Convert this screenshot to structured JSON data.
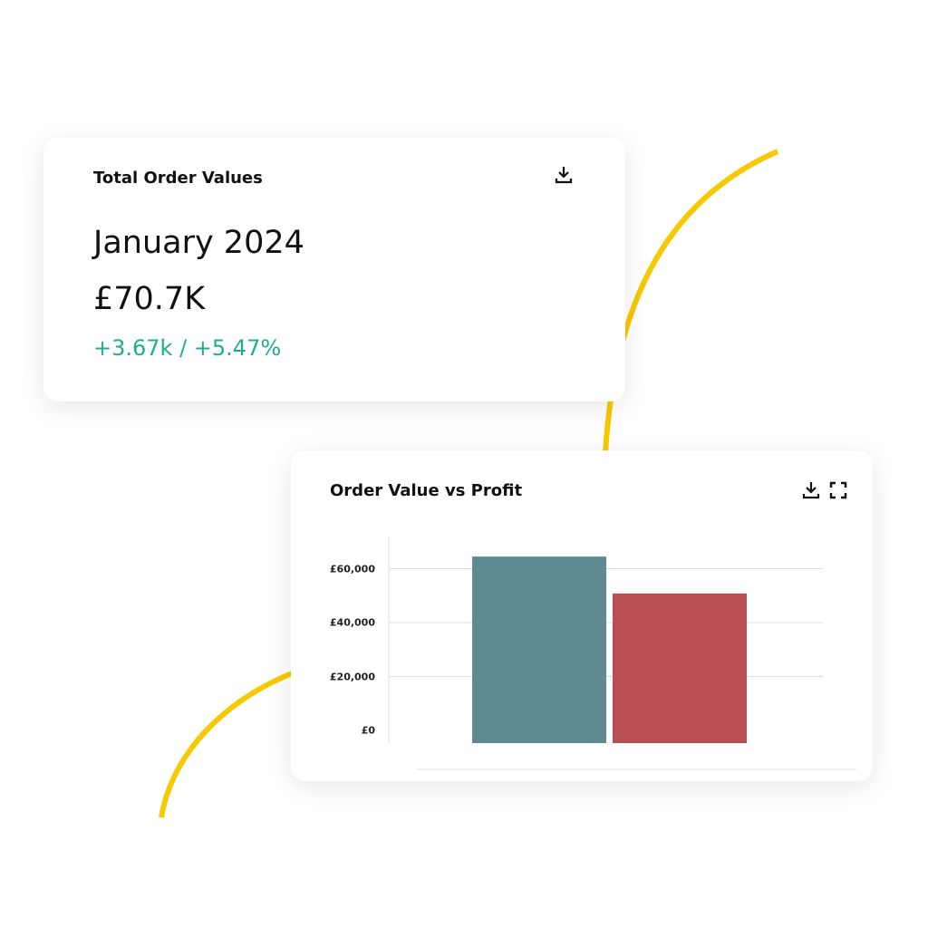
{
  "colors": {
    "accent_arc": "#f6c900",
    "positive": "#1fae8b",
    "series1": "#5f8a91",
    "series2": "#b94f55"
  },
  "summary_card": {
    "title": "Total Order Values",
    "period": "January 2024",
    "amount": "£70.7K",
    "change": "+3.67k / +5.47%",
    "icons": [
      "download-icon"
    ]
  },
  "chart_card": {
    "title": "Order Value vs Profit",
    "icons": [
      "download-icon",
      "expand-icon"
    ]
  },
  "chart_data": {
    "type": "bar",
    "categories": [
      ""
    ],
    "series": [
      {
        "values": [
          64500
        ],
        "color": "#5f8a91"
      },
      {
        "values": [
          50800
        ],
        "color": "#b94f55"
      }
    ],
    "yticks": [
      "£0",
      "£20,000",
      "£40,000",
      "£60,000"
    ],
    "ytick_values": [
      0,
      20000,
      40000,
      60000
    ],
    "ylim": [
      0,
      60000
    ],
    "grid": true,
    "xlabel": "",
    "ylabel": "",
    "title": ""
  }
}
